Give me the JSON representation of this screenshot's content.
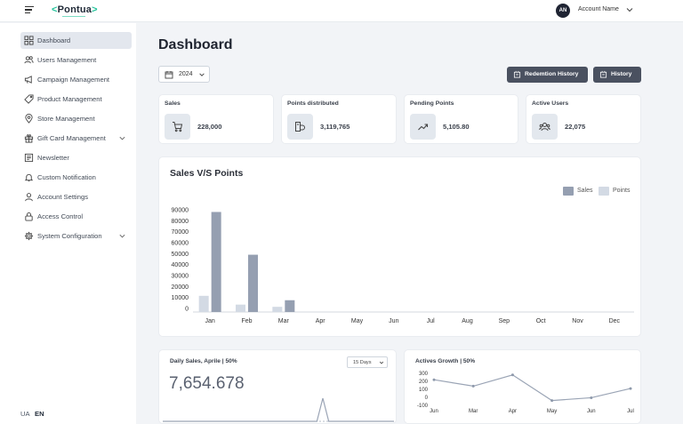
{
  "header": {
    "brand_prefix": "<",
    "brand_name": "Pontua",
    "brand_suffix": ">",
    "avatar_initials": "AN",
    "account_name": "Account Name",
    "icons": {
      "menu": "hamburger-menu-icon",
      "account": "chevron-down-icon"
    }
  },
  "sidebar": {
    "items": [
      {
        "label": "Dashboard",
        "icon": "grid-icon",
        "active": true
      },
      {
        "label": "Users Management",
        "icon": "users-icon"
      },
      {
        "label": "Campaign Management",
        "icon": "megaphone-icon"
      },
      {
        "label": "Product Management",
        "icon": "tag-icon"
      },
      {
        "label": "Store Management",
        "icon": "location-pin-icon"
      },
      {
        "label": "Gift Card Management",
        "icon": "gift-icon",
        "expandable": true
      },
      {
        "label": "Newsletter",
        "icon": "newspaper-icon"
      },
      {
        "label": "Custom Notification",
        "icon": "bell-icon"
      },
      {
        "label": "Account Settings",
        "icon": "user-icon"
      },
      {
        "label": "Access Control",
        "icon": "lock-icon"
      },
      {
        "label": "System Configuration",
        "icon": "gear-icon",
        "expandable": true
      }
    ],
    "languages": [
      "UA",
      "EN"
    ],
    "selected_language": "EN"
  },
  "main": {
    "title": "Dashboard",
    "year": "2024",
    "buttons": {
      "redemption_history": "Redemtion History",
      "history": "History"
    },
    "stats": [
      {
        "title": "Sales",
        "value": "228,000",
        "icon": "cart-icon"
      },
      {
        "title": "Points distributed",
        "value": "3,119,765",
        "icon": "coins-icon"
      },
      {
        "title": "Pending Points",
        "value": "5,105.80",
        "icon": "trend-up-icon"
      },
      {
        "title": "Active Users",
        "value": "22,075",
        "icon": "users-icon"
      }
    ]
  },
  "sales_points_chart": {
    "title": "Sales V/S Points",
    "legend": [
      "Sales",
      "Points"
    ]
  },
  "daily_sales": {
    "title": "Daily Sales, Aprile | 50%",
    "value": "7,654.678",
    "range": "15 Days"
  },
  "actives_growth": {
    "title": "Actives Growth | 50%"
  },
  "colors": {
    "sales": "#959fb1",
    "points": "#d3dae4",
    "accent": "#22c39a",
    "button": "#4a5160"
  },
  "chart_data": [
    {
      "type": "bar",
      "title": "Sales V/S Points",
      "categories": [
        "Jan",
        "Feb",
        "Mar",
        "Apr",
        "May",
        "Jun",
        "Jul",
        "Aug",
        "Sep",
        "Oct",
        "Nov",
        "Dec"
      ],
      "yticks": [
        90000,
        80000,
        70000,
        60000,
        50000,
        40000,
        30000,
        20000,
        10000,
        0
      ],
      "ylim": [
        0,
        90000
      ],
      "series": [
        {
          "name": "Sales",
          "values": [
            88000,
            49000,
            7500,
            0,
            0,
            0,
            0,
            0,
            0,
            0,
            0,
            0
          ]
        },
        {
          "name": "Points",
          "values": [
            11500,
            3500,
            1500,
            0,
            0,
            0,
            0,
            0,
            0,
            0,
            0,
            0
          ]
        }
      ],
      "legend": "top-right"
    },
    {
      "type": "line",
      "title": "Actives Growth | 50%",
      "categories": [
        "Jun",
        "Mar",
        "Apr",
        "May",
        "Jun",
        "Jul"
      ],
      "yticks": [
        300,
        200,
        100,
        0,
        -100
      ],
      "ylim": [
        -100,
        300
      ],
      "values": [
        220,
        140,
        280,
        -40,
        -5,
        110
      ]
    },
    {
      "type": "area",
      "title": "Daily Sales, Aprile | 50%",
      "values": [
        0,
        0,
        0,
        0,
        0,
        0,
        0,
        0,
        0,
        0,
        0,
        0,
        0,
        0,
        0,
        0,
        0,
        0,
        0,
        0,
        0,
        0,
        0,
        0,
        0,
        0,
        0,
        1,
        0,
        0,
        0,
        0,
        0,
        0,
        0,
        0,
        0,
        0,
        0,
        0
      ]
    }
  ]
}
